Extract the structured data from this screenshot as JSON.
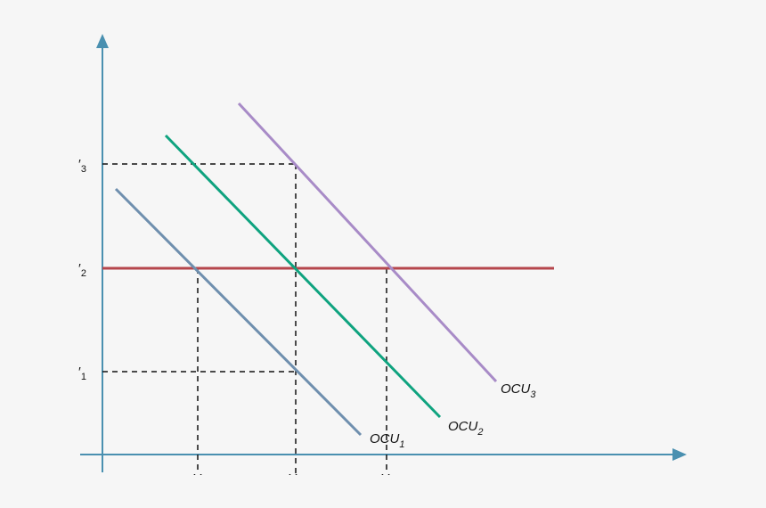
{
  "y_labels": [
    {
      "main": "′",
      "sub": "3"
    },
    {
      "main": "′",
      "sub": "2"
    },
    {
      "main": "′",
      "sub": "1"
    }
  ],
  "x_labels": [
    "Y",
    "Y",
    "Y"
  ],
  "curves": [
    {
      "main": "OCU",
      "sub": "1"
    },
    {
      "main": "OCU",
      "sub": "2"
    },
    {
      "main": "OCU",
      "sub": "3"
    }
  ]
}
